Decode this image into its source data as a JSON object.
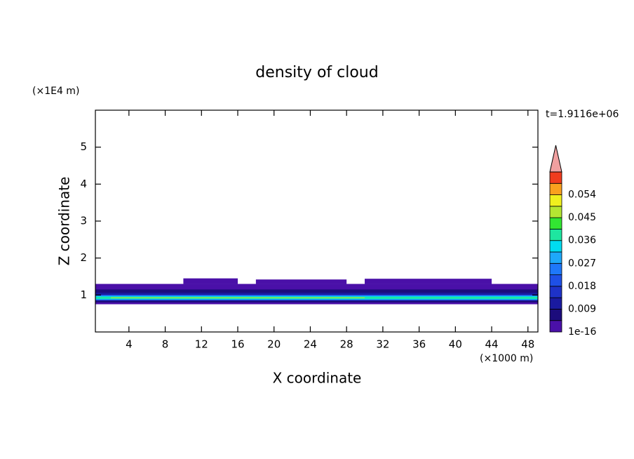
{
  "chart_data": {
    "type": "contour",
    "title": "density of cloud",
    "x_label": "X coordinate",
    "x_unit": "(×1000 m)",
    "y_label": "Z coordinate",
    "y_unit": "(×1E4 m)",
    "time_label": "t=1.9116e+06",
    "xlim": [
      0.3,
      49.1
    ],
    "xticks": [
      4,
      8,
      12,
      16,
      20,
      24,
      28,
      32,
      36,
      40,
      44,
      48
    ],
    "ylim": [
      0,
      6
    ],
    "yticks": [
      1,
      2,
      3,
      4,
      5
    ],
    "levels": [
      1e-16,
      0.0045,
      0.009,
      0.0135,
      0.018,
      0.0225,
      0.027,
      0.0315,
      0.036,
      0.0405,
      0.045,
      0.0495,
      0.054,
      0.0585,
      0.063
    ],
    "colors": [
      "#4a10a8",
      "#1c0c7c",
      "#1a1aa0",
      "#1e32c8",
      "#1e50e6",
      "#1e78fa",
      "#1ea8fa",
      "#00dcf0",
      "#1ee6a0",
      "#32e632",
      "#b4e632",
      "#f0f01e",
      "#faa01e",
      "#f03c1e"
    ],
    "over_color": "#f0a0a0",
    "level_ticks": [
      1e-16,
      0.009,
      0.018,
      0.027,
      0.036,
      0.045,
      0.054
    ],
    "bands": [
      {
        "value": 0.002,
        "x": [
          0.3,
          49.1
        ],
        "z": [
          0.75,
          1.3
        ]
      },
      {
        "value": 0.002,
        "x": [
          10,
          16
        ],
        "z": [
          1.3,
          1.45
        ]
      },
      {
        "value": 0.002,
        "x": [
          18,
          28
        ],
        "z": [
          1.3,
          1.42
        ]
      },
      {
        "value": 0.002,
        "x": [
          30,
          44
        ],
        "z": [
          1.3,
          1.44
        ]
      },
      {
        "value": 0.006,
        "x": [
          0.3,
          49.1
        ],
        "z": [
          0.8,
          1.15
        ]
      },
      {
        "value": 0.012,
        "x": [
          0.3,
          49.1
        ],
        "z": [
          0.84,
          1.06
        ]
      },
      {
        "value": 0.025,
        "x": [
          0.3,
          49.1
        ],
        "z": [
          0.86,
          1.0
        ]
      },
      {
        "value": 0.033,
        "x": [
          0.3,
          49.1
        ],
        "z": [
          0.88,
          0.97
        ]
      },
      {
        "value": 0.038,
        "x": [
          0.3,
          49.1
        ],
        "z": [
          0.9,
          0.95
        ]
      },
      {
        "value": 0.046,
        "x": [
          2,
          30
        ],
        "z": [
          0.915,
          0.935
        ]
      }
    ]
  }
}
